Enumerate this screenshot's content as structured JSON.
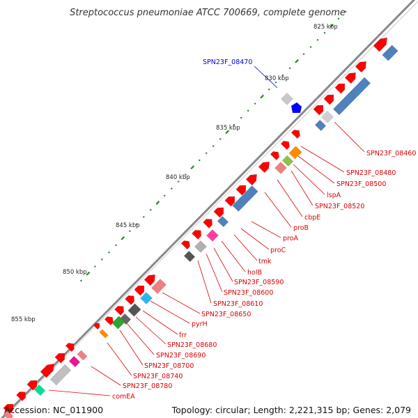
{
  "title": "Streptococcus pneumoniae ATCC 700669, complete genome",
  "footer": {
    "accession": "Accession: NC_011900",
    "topology": "Topology: circular; Length: 2,221,315 bp; Genes: 2,079"
  },
  "kbp_labels": [
    "825 kbp",
    "830 kbp",
    "835 kbp",
    "840 kbp",
    "845 kbp",
    "850 kbp",
    "855 kbp"
  ],
  "gene_labels": [
    {
      "text": "SPN23F_08470",
      "color": "#0000cc"
    },
    {
      "text": "SPN23F_08460",
      "color": "#dd0000"
    },
    {
      "text": "SPN23F_08480",
      "color": "#dd0000"
    },
    {
      "text": "SPN23F_08500",
      "color": "#dd0000"
    },
    {
      "text": "lspA",
      "color": "#dd0000"
    },
    {
      "text": "SPN23F_08520",
      "color": "#dd0000"
    },
    {
      "text": "cbpE",
      "color": "#dd0000"
    },
    {
      "text": "proB",
      "color": "#dd0000"
    },
    {
      "text": "proA",
      "color": "#dd0000"
    },
    {
      "text": "proC",
      "color": "#dd0000"
    },
    {
      "text": "tmk",
      "color": "#dd0000"
    },
    {
      "text": "holB",
      "color": "#dd0000"
    },
    {
      "text": "SPN23F_08590",
      "color": "#dd0000"
    },
    {
      "text": "SPN23F_08600",
      "color": "#dd0000"
    },
    {
      "text": "SPN23F_08610",
      "color": "#dd0000"
    },
    {
      "text": "SPN23F_08650",
      "color": "#dd0000"
    },
    {
      "text": "pyrH",
      "color": "#dd0000"
    },
    {
      "text": "frr",
      "color": "#dd0000"
    },
    {
      "text": "SPN23F_08680",
      "color": "#dd0000"
    },
    {
      "text": "SPN23F_08690",
      "color": "#dd0000"
    },
    {
      "text": "SPN23F_08700",
      "color": "#dd0000"
    },
    {
      "text": "SPN23F_08740",
      "color": "#dd0000"
    },
    {
      "text": "SPN23F_08780",
      "color": "#dd0000"
    },
    {
      "text": "comEA",
      "color": "#dd0000"
    }
  ],
  "colors": {
    "backbone": "#888888",
    "forward_gene": "#ff0000",
    "reverse_gene": "#4f81bd",
    "tick": "#228822",
    "other_gray": "#c0c0c0",
    "blue_feature": "#0000ff"
  }
}
